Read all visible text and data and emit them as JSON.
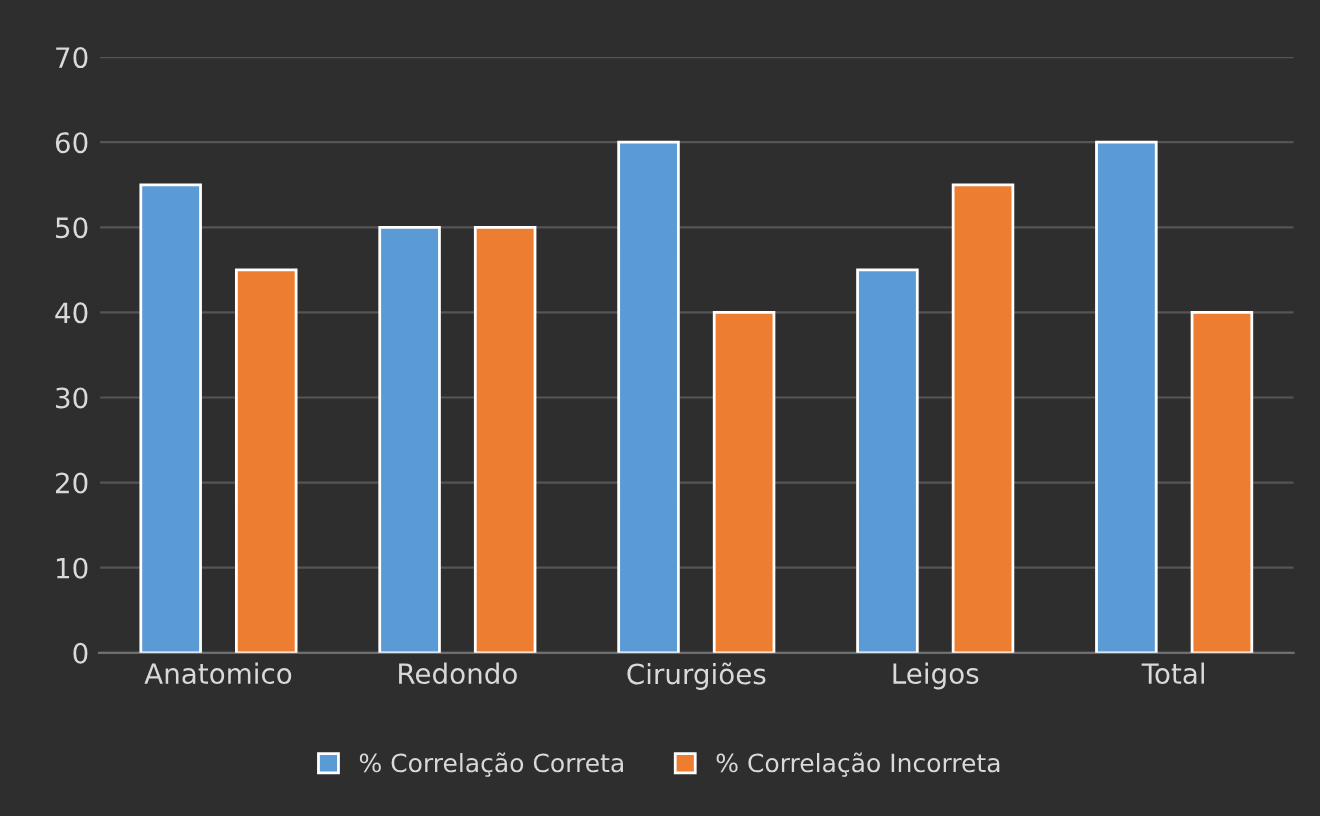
{
  "chart_data": {
    "type": "bar",
    "categories": [
      "Anatomico",
      "Redondo",
      "Cirurgiões",
      "Leigos",
      "Total"
    ],
    "series": [
      {
        "name": "% Correlação Correta",
        "color": "#5b9bd5",
        "values": [
          55,
          50,
          60,
          45,
          60
        ]
      },
      {
        "name": "% Correlação Incorreta",
        "color": "#ed7d31",
        "values": [
          45,
          50,
          40,
          55,
          40
        ]
      }
    ],
    "ylim": [
      0,
      70
    ],
    "yticks": [
      0,
      10,
      20,
      30,
      40,
      50,
      60,
      70
    ],
    "grid": "y",
    "legend": "bottom"
  }
}
